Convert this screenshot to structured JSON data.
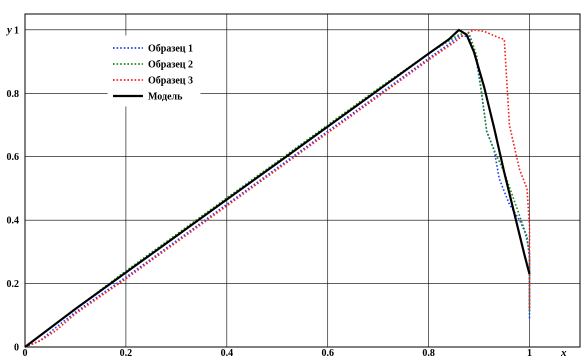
{
  "chart_data": {
    "type": "line",
    "xlabel": "x",
    "ylabel": "y",
    "xlim": [
      0,
      1.1
    ],
    "ylim": [
      0,
      1.05
    ],
    "x_ticks": [
      0,
      0.2,
      0.4,
      0.6,
      0.8,
      1
    ],
    "x_tick_labels": [
      "0",
      "0.2",
      "0.4",
      "0.6",
      "0.8",
      "1"
    ],
    "y_ticks": [
      0,
      0.2,
      0.4,
      0.6,
      0.8,
      1
    ],
    "y_tick_labels": [
      "0",
      "0.2",
      "0.4",
      "0.6",
      "0.8",
      "1"
    ],
    "grid": true,
    "legend_position": "top-left",
    "series": [
      {
        "name": "Образец 1",
        "color": "#1f3fff",
        "style": "dotted",
        "x": [
          0,
          0.03,
          0.06,
          0.1,
          0.2,
          0.3,
          0.4,
          0.5,
          0.6,
          0.7,
          0.8,
          0.84,
          0.86,
          0.88,
          0.895,
          0.905,
          0.915,
          0.93,
          0.94,
          0.96,
          0.98,
          0.995,
          1.0,
          1.0
        ],
        "y": [
          0,
          0.02,
          0.06,
          0.11,
          0.22,
          0.335,
          0.45,
          0.565,
          0.68,
          0.795,
          0.91,
          0.955,
          0.98,
          0.98,
          0.9,
          0.8,
          0.68,
          0.62,
          0.53,
          0.45,
          0.4,
          0.35,
          0.28,
          0.09
        ]
      },
      {
        "name": "Образец 2",
        "color": "#1a8a1a",
        "style": "dotted",
        "x": [
          0,
          0.05,
          0.1,
          0.2,
          0.3,
          0.4,
          0.5,
          0.6,
          0.7,
          0.8,
          0.84,
          0.86,
          0.88,
          0.895,
          0.905,
          0.915,
          0.93,
          0.95,
          0.97,
          0.99,
          1.0,
          1.0
        ],
        "y": [
          0,
          0.06,
          0.12,
          0.24,
          0.355,
          0.47,
          0.585,
          0.7,
          0.815,
          0.925,
          0.965,
          0.985,
          0.99,
          0.92,
          0.8,
          0.68,
          0.62,
          0.55,
          0.46,
          0.37,
          0.3,
          0.11
        ]
      },
      {
        "name": "Образец 3",
        "color": "#ff1a1a",
        "style": "dotted",
        "x": [
          0,
          0.03,
          0.06,
          0.1,
          0.2,
          0.3,
          0.4,
          0.5,
          0.6,
          0.7,
          0.8,
          0.85,
          0.87,
          0.89,
          0.91,
          0.94,
          0.95,
          0.96,
          0.98,
          0.99,
          0.995,
          1.0,
          1.0
        ],
        "y": [
          0,
          0.02,
          0.05,
          0.105,
          0.215,
          0.33,
          0.445,
          0.56,
          0.675,
          0.79,
          0.905,
          0.96,
          0.985,
          1.0,
          0.995,
          0.975,
          0.97,
          0.7,
          0.56,
          0.52,
          0.5,
          0.38,
          0.12
        ]
      },
      {
        "name": "Модель",
        "color": "#000000",
        "style": "solid",
        "x": [
          0,
          0.1,
          0.2,
          0.3,
          0.4,
          0.5,
          0.6,
          0.7,
          0.8,
          0.84,
          0.86,
          0.875,
          0.89,
          0.91,
          0.93,
          0.95,
          0.97,
          0.99,
          1.0
        ],
        "y": [
          0,
          0.12,
          0.235,
          0.35,
          0.465,
          0.58,
          0.695,
          0.81,
          0.925,
          0.97,
          1.0,
          0.985,
          0.93,
          0.82,
          0.69,
          0.55,
          0.42,
          0.29,
          0.23
        ]
      }
    ]
  }
}
